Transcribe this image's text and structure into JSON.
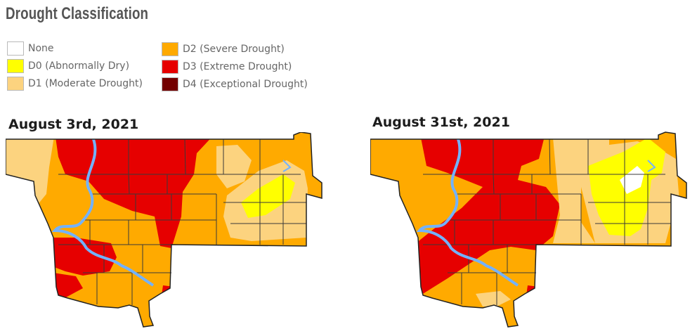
{
  "title": "Drought Classification",
  "legend": [
    {
      "label": "None",
      "color": "#ffffff"
    },
    {
      "label": "D0 (Abnormally Dry)",
      "color": "#ffff00"
    },
    {
      "label": "D1 (Moderate Drought)",
      "color": "#fcd37f"
    },
    {
      "label": "D2 (Severe Drought)",
      "color": "#ffaa00"
    },
    {
      "label": "D3 (Extreme Drought)",
      "color": "#e60000"
    },
    {
      "label": "D4 (Exceptional Drought)",
      "color": "#730000"
    }
  ],
  "maps": [
    {
      "date": "August 3rd, 2021"
    },
    {
      "date": "August 31st, 2021"
    }
  ],
  "colors": {
    "none": "#ffffff",
    "d0": "#ffff00",
    "d1": "#fcd37f",
    "d2": "#ffaa00",
    "d3": "#e60000",
    "d4": "#730000",
    "water": "#73b2ff",
    "border": "#222222",
    "county_line": "#3a3a3a"
  }
}
